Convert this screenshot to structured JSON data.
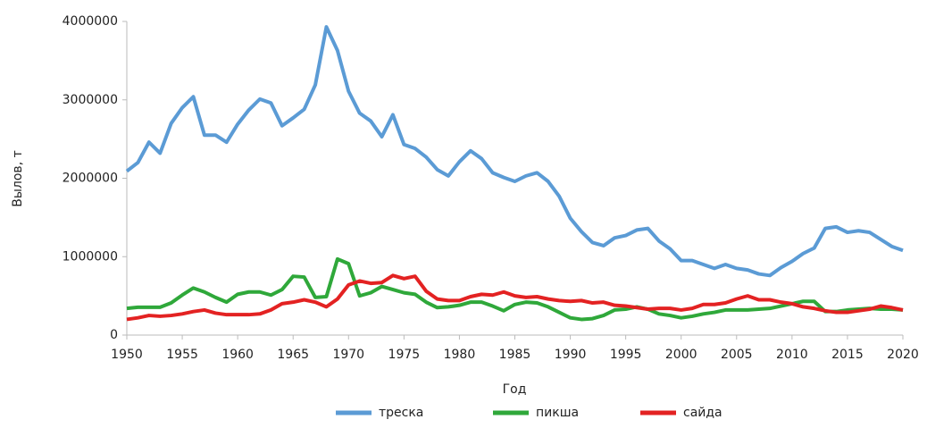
{
  "chart_data": {
    "type": "line",
    "y_label": "Вылов, т",
    "x_label": "Год",
    "x": [
      1950,
      1951,
      1952,
      1953,
      1954,
      1955,
      1956,
      1957,
      1958,
      1959,
      1960,
      1961,
      1962,
      1963,
      1964,
      1965,
      1966,
      1967,
      1968,
      1969,
      1970,
      1971,
      1972,
      1973,
      1974,
      1975,
      1976,
      1977,
      1978,
      1979,
      1980,
      1981,
      1982,
      1983,
      1984,
      1985,
      1986,
      1987,
      1988,
      1989,
      1990,
      1991,
      1992,
      1993,
      1994,
      1995,
      1996,
      1997,
      1998,
      1999,
      2000,
      2001,
      2002,
      2003,
      2004,
      2005,
      2006,
      2007,
      2008,
      2009,
      2010,
      2011,
      2012,
      2013,
      2014,
      2015,
      2016,
      2017,
      2018,
      2019,
      2020
    ],
    "series": [
      {
        "name": "треска",
        "color": "#5b9bd5",
        "values": [
          2090000,
          2200000,
          2460000,
          2320000,
          2700000,
          2900000,
          3040000,
          2550000,
          2550000,
          2460000,
          2690000,
          2870000,
          3010000,
          2960000,
          2670000,
          2770000,
          2880000,
          3190000,
          3930000,
          3630000,
          3110000,
          2830000,
          2730000,
          2530000,
          2810000,
          2430000,
          2380000,
          2270000,
          2110000,
          2030000,
          2210000,
          2350000,
          2250000,
          2070000,
          2010000,
          1960000,
          2030000,
          2070000,
          1960000,
          1770000,
          1490000,
          1320000,
          1180000,
          1140000,
          1240000,
          1270000,
          1340000,
          1360000,
          1200000,
          1100000,
          950000,
          950000,
          900000,
          850000,
          900000,
          850000,
          830000,
          780000,
          760000,
          860000,
          940000,
          1040000,
          1110000,
          1360000,
          1380000,
          1310000,
          1330000,
          1310000,
          1220000,
          1130000,
          1080000
        ]
      },
      {
        "name": "пикша",
        "color": "#2fa83a",
        "values": [
          340000,
          355000,
          355000,
          355000,
          410000,
          510000,
          600000,
          550000,
          480000,
          420000,
          520000,
          550000,
          550000,
          510000,
          580000,
          750000,
          740000,
          480000,
          490000,
          970000,
          910000,
          500000,
          540000,
          620000,
          580000,
          540000,
          520000,
          420000,
          350000,
          360000,
          380000,
          420000,
          420000,
          370000,
          310000,
          390000,
          420000,
          410000,
          360000,
          290000,
          220000,
          200000,
          210000,
          250000,
          320000,
          330000,
          360000,
          330000,
          270000,
          250000,
          220000,
          240000,
          270000,
          290000,
          320000,
          320000,
          320000,
          330000,
          340000,
          370000,
          400000,
          430000,
          430000,
          300000,
          300000,
          320000,
          330000,
          340000,
          330000,
          330000,
          320000
        ]
      },
      {
        "name": "сайда",
        "color": "#e32222",
        "values": [
          200000,
          220000,
          250000,
          240000,
          250000,
          270000,
          300000,
          320000,
          280000,
          260000,
          260000,
          260000,
          270000,
          320000,
          400000,
          420000,
          450000,
          420000,
          360000,
          460000,
          640000,
          690000,
          660000,
          670000,
          760000,
          720000,
          750000,
          560000,
          460000,
          440000,
          440000,
          490000,
          520000,
          510000,
          550000,
          500000,
          480000,
          490000,
          460000,
          440000,
          430000,
          440000,
          410000,
          420000,
          380000,
          370000,
          350000,
          330000,
          340000,
          340000,
          320000,
          340000,
          390000,
          390000,
          410000,
          460000,
          500000,
          450000,
          450000,
          420000,
          400000,
          360000,
          340000,
          310000,
          290000,
          290000,
          310000,
          330000,
          370000,
          350000,
          320000
        ]
      }
    ],
    "xlim": [
      1950,
      2020
    ],
    "xticks": [
      1950,
      1955,
      1960,
      1965,
      1970,
      1975,
      1980,
      1985,
      1990,
      1995,
      2000,
      2005,
      2010,
      2015,
      2020
    ],
    "ylim": [
      0,
      4000000
    ],
    "yticks": [
      0,
      1000000,
      2000000,
      3000000,
      4000000
    ],
    "grid": false,
    "legend": "bottom"
  }
}
